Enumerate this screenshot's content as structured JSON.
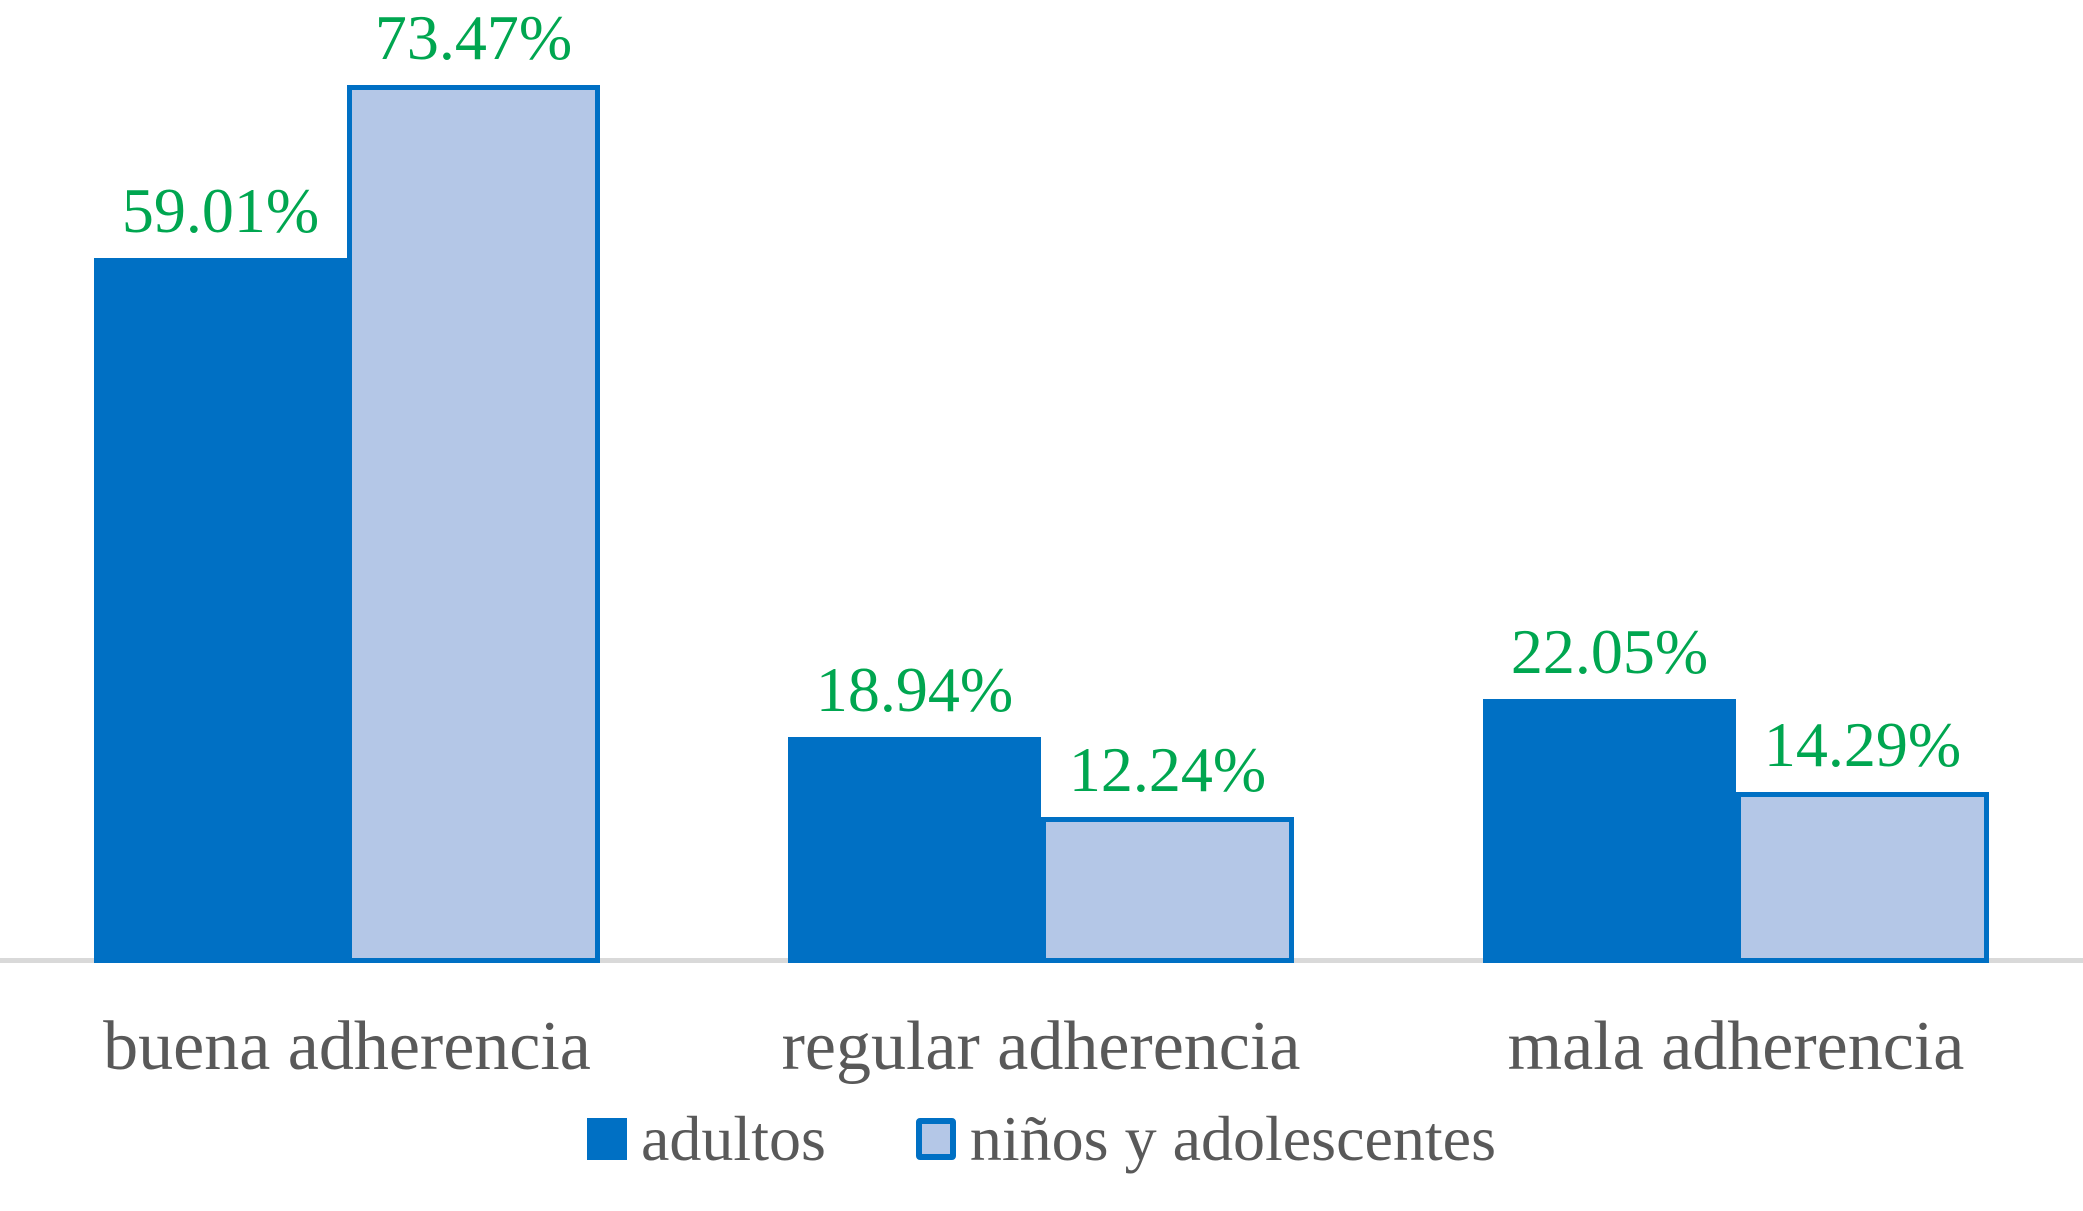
{
  "chart_data": {
    "type": "bar",
    "categories": [
      "buena adherencia",
      "regular adherencia",
      "mala adherencia"
    ],
    "series": [
      {
        "name": "adultos",
        "values": [
          59.01,
          18.94,
          22.05
        ],
        "labels": [
          "59.01%",
          "18.94%",
          "22.05%"
        ],
        "fill": "#0070C4",
        "border": "#0070C4"
      },
      {
        "name": "niños y adolescentes",
        "values": [
          73.47,
          12.24,
          14.29
        ],
        "labels": [
          "73.47%",
          "12.24%",
          "14.29%"
        ],
        "fill": "#B4C7E7",
        "border": "#0070C4"
      }
    ],
    "title": "",
    "xlabel": "",
    "ylabel": "",
    "ylim": [
      0,
      80
    ],
    "grid": false,
    "axis_ticks_visible": false,
    "legend_position": "bottom",
    "colors": {
      "data_label": "#00A650",
      "category_label": "#595959",
      "legend_label": "#595959",
      "axis_line": "#D9D9D9",
      "background": "#FFFFFF"
    }
  }
}
